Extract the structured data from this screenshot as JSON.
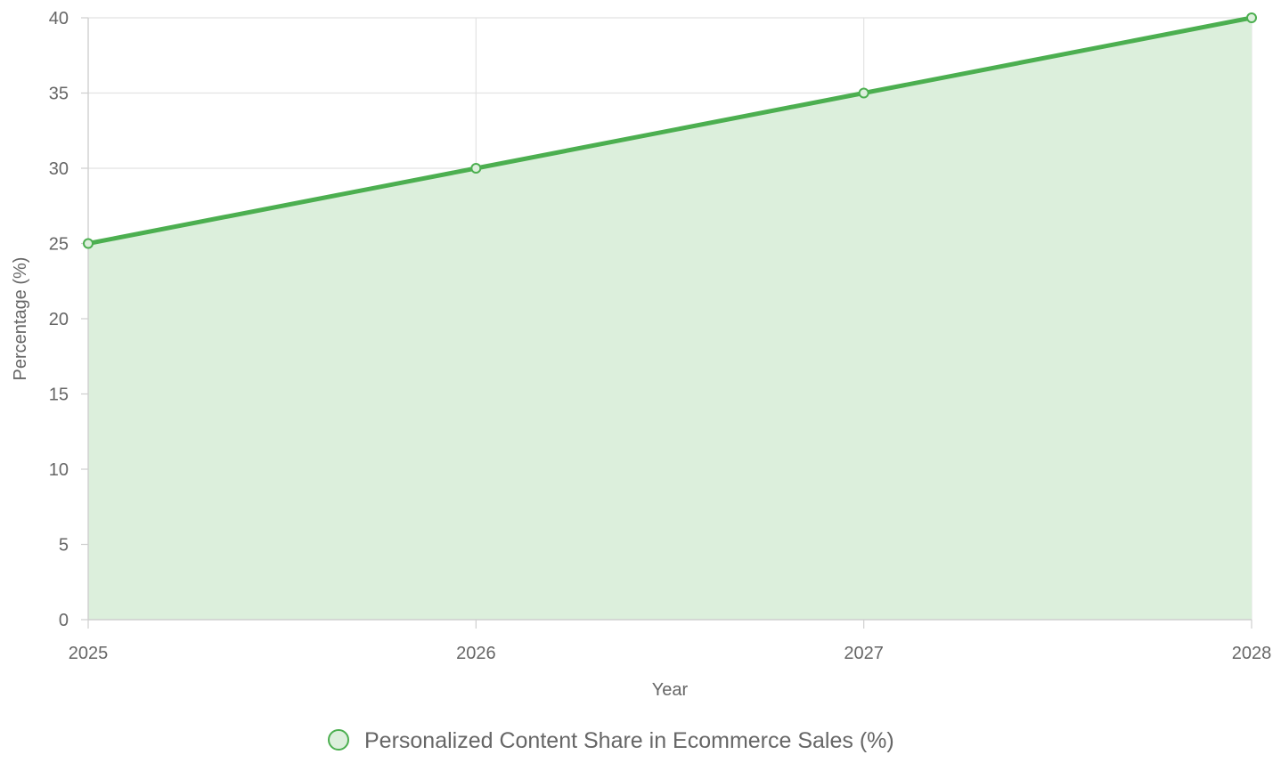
{
  "chart_data": {
    "type": "area",
    "categories": [
      "2025",
      "2026",
      "2027",
      "2028"
    ],
    "series": [
      {
        "name": "Personalized Content Share in Ecommerce Sales (%)",
        "values": [
          25,
          30,
          35,
          40
        ],
        "color": "#4caf50",
        "fill_color": "#dcefdc"
      }
    ],
    "xlabel": "Year",
    "ylabel": "Percentage (%)",
    "ylim": [
      0,
      40
    ],
    "yticks": [
      "0",
      "5",
      "10",
      "15",
      "20",
      "25",
      "30",
      "35",
      "40"
    ],
    "grid": true,
    "legend_position": "bottom"
  }
}
